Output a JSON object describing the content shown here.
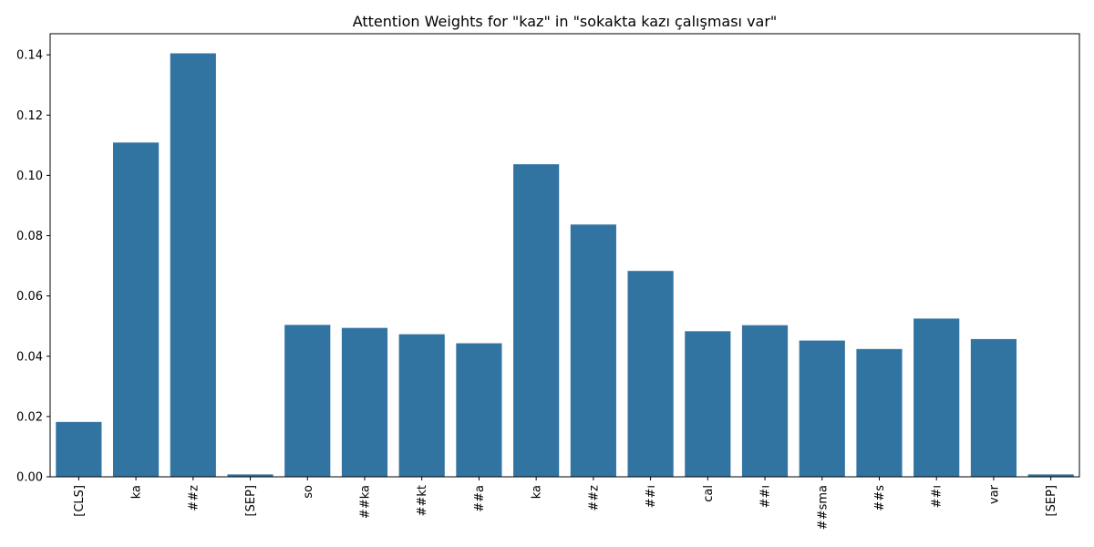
{
  "chart_data": {
    "type": "bar",
    "title": "Attention Weights for \"kaz\" in \"sokakta kazı çalışması var\"",
    "xlabel": "",
    "ylabel": "",
    "categories": [
      "[CLS]",
      "ka",
      "##z",
      "[SEP]",
      "so",
      "##ka",
      "##kt",
      "##a",
      "ka",
      "##z",
      "##ı",
      "cal",
      "##ı",
      "##sma",
      "##s",
      "##ı",
      "var",
      "[SEP]"
    ],
    "values": [
      0.0182,
      0.1109,
      0.1405,
      0.0008,
      0.0504,
      0.0494,
      0.0473,
      0.0443,
      0.1037,
      0.0837,
      0.0683,
      0.0483,
      0.0503,
      0.0452,
      0.0424,
      0.0525,
      0.0457,
      0.0008
    ],
    "ylim": [
      0,
      0.147
    ],
    "yticks": [
      "0.00",
      "0.02",
      "0.04",
      "0.06",
      "0.08",
      "0.10",
      "0.12",
      "0.14"
    ],
    "bar_color": "#3274a1",
    "grid": false,
    "legend": "none"
  }
}
